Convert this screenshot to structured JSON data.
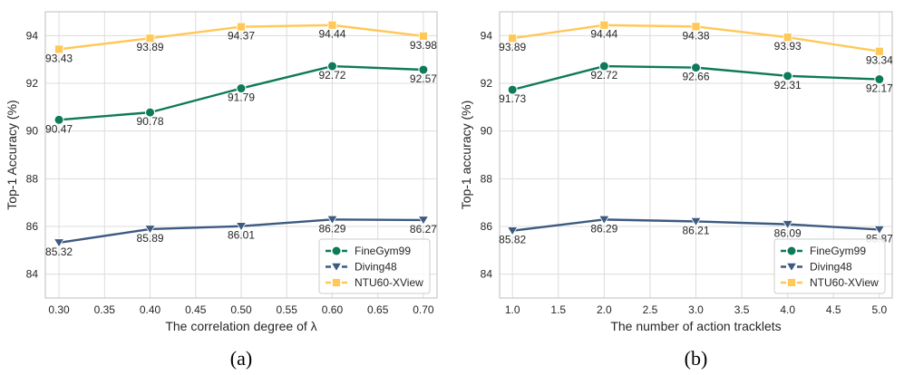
{
  "chart_data": [
    {
      "type": "line",
      "caption": "(a)",
      "xlabel": "The correlation degree of λ",
      "ylabel": "Top-1 Accuracy (%)",
      "xlim": [
        0.285,
        0.715
      ],
      "ylim": [
        83,
        95
      ],
      "xticks": [
        0.3,
        0.35,
        0.4,
        0.45,
        0.5,
        0.55,
        0.6,
        0.65,
        0.7
      ],
      "xtick_labels": [
        "0.30",
        "0.35",
        "0.40",
        "0.45",
        "0.50",
        "0.55",
        "0.60",
        "0.65",
        "0.70"
      ],
      "yticks": [
        84,
        86,
        88,
        90,
        92,
        94
      ],
      "ytick_labels": [
        "84",
        "86",
        "88",
        "90",
        "92",
        "94"
      ],
      "grid": true,
      "legend_position": "bottom-right",
      "x": [
        0.3,
        0.4,
        0.5,
        0.6,
        0.7
      ],
      "series": [
        {
          "name": "FineGym99",
          "marker": "circle",
          "color": "#0e7a5a",
          "values": [
            90.47,
            90.78,
            91.79,
            92.72,
            92.57
          ],
          "labels": [
            "90.47",
            "90.78",
            "91.79",
            "92.72",
            "92.57"
          ]
        },
        {
          "name": "Diving48",
          "marker": "triangle-down",
          "color": "#3d5a80",
          "values": [
            85.32,
            85.89,
            86.01,
            86.29,
            86.27
          ],
          "labels": [
            "85.32",
            "85.89",
            "86.01",
            "86.29",
            "86.27"
          ]
        },
        {
          "name": "NTU60-XView",
          "marker": "square",
          "color": "#ffc857",
          "values": [
            93.43,
            93.89,
            94.37,
            94.44,
            93.98
          ],
          "labels": [
            "93.43",
            "93.89",
            "94.37",
            "94.44",
            "93.98"
          ]
        }
      ]
    },
    {
      "type": "line",
      "caption": "(b)",
      "xlabel": "The number of action tracklets",
      "ylabel": "Top-1 accuracy (%)",
      "xlim": [
        0.86,
        5.14
      ],
      "ylim": [
        83,
        95
      ],
      "xticks": [
        1.0,
        1.5,
        2.0,
        2.5,
        3.0,
        3.5,
        4.0,
        4.5,
        5.0
      ],
      "xtick_labels": [
        "1.0",
        "1.5",
        "2.0",
        "2.5",
        "3.0",
        "3.5",
        "4.0",
        "4.5",
        "5.0"
      ],
      "yticks": [
        84,
        86,
        88,
        90,
        92,
        94
      ],
      "ytick_labels": [
        "84",
        "86",
        "88",
        "90",
        "92",
        "94"
      ],
      "grid": true,
      "legend_position": "bottom-right",
      "x": [
        1,
        2,
        3,
        4,
        5
      ],
      "series": [
        {
          "name": "FineGym99",
          "marker": "circle",
          "color": "#0e7a5a",
          "values": [
            91.73,
            92.72,
            92.66,
            92.31,
            92.17
          ],
          "labels": [
            "91.73",
            "92.72",
            "92.66",
            "92.31",
            "92.17"
          ]
        },
        {
          "name": "Diving48",
          "marker": "triangle-down",
          "color": "#3d5a80",
          "values": [
            85.82,
            86.29,
            86.21,
            86.09,
            85.87
          ],
          "labels": [
            "85.82",
            "86.29",
            "86.21",
            "86.09",
            "85.87"
          ]
        },
        {
          "name": "NTU60-XView",
          "marker": "square",
          "color": "#ffc857",
          "values": [
            93.89,
            94.44,
            94.38,
            93.93,
            93.34
          ],
          "labels": [
            "93.89",
            "94.44",
            "94.38",
            "93.93",
            "93.34"
          ]
        }
      ]
    }
  ]
}
